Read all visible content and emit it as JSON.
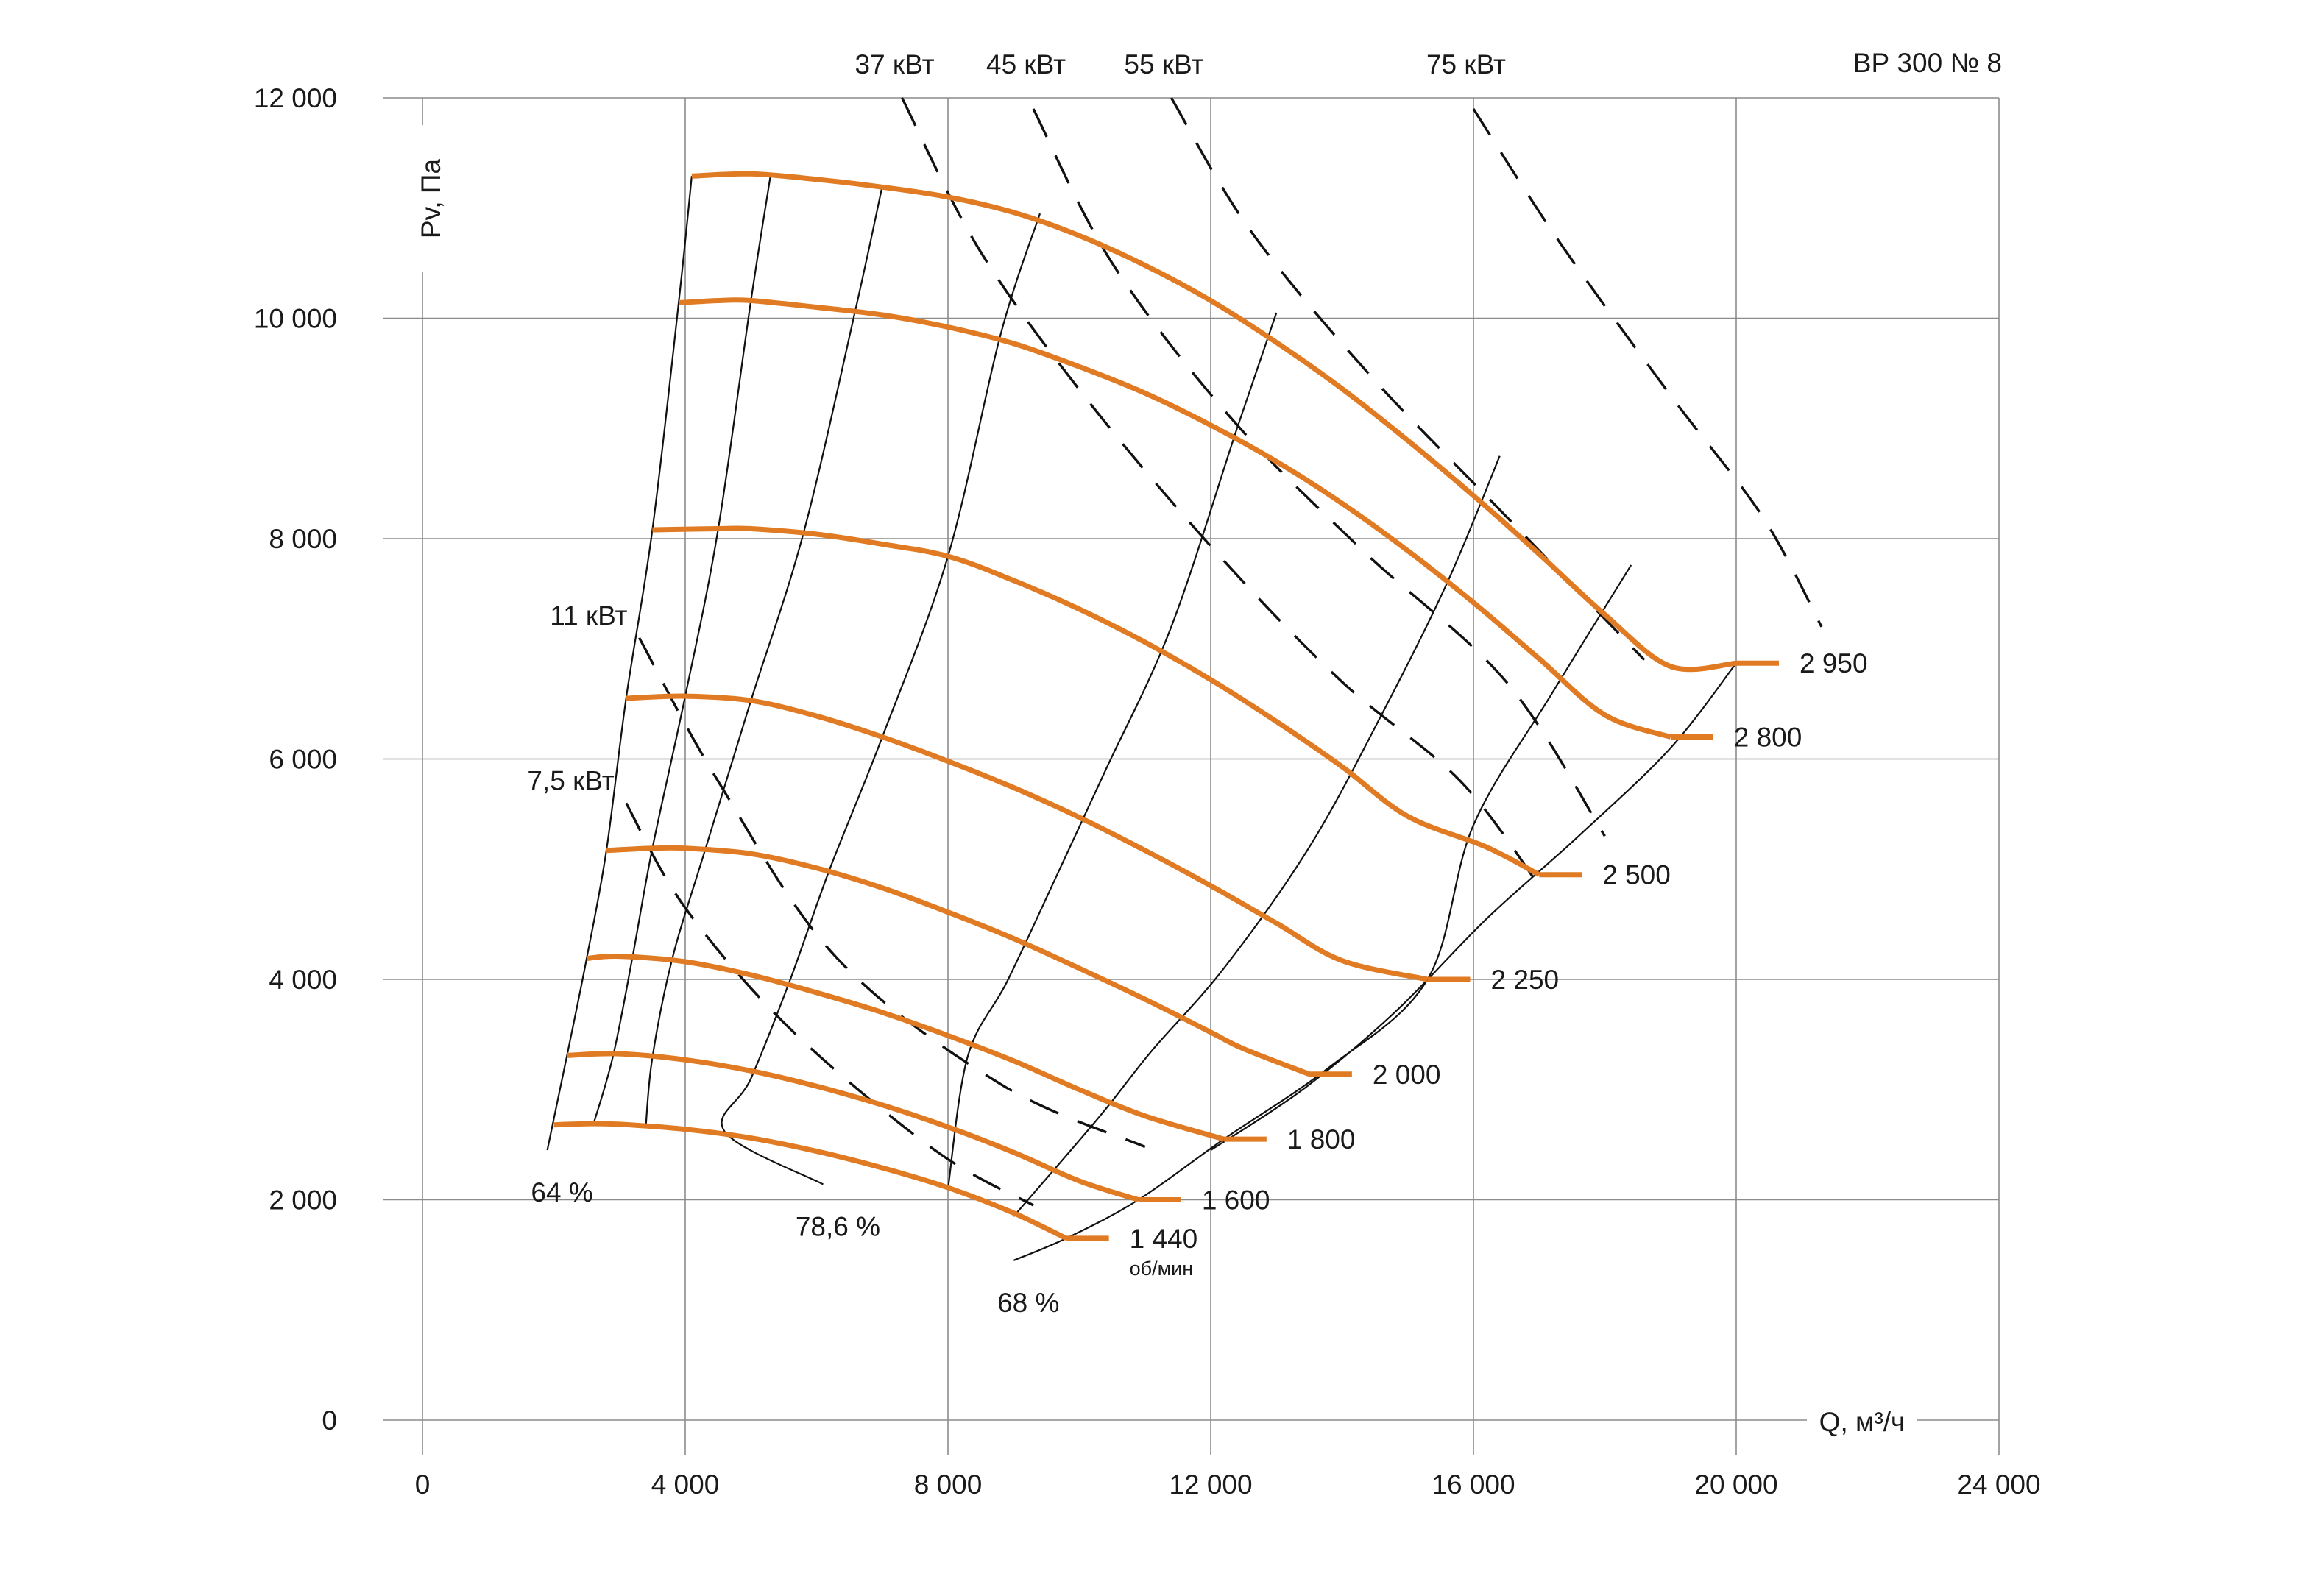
{
  "chart_data": {
    "type": "line",
    "title": "ВР 300 № 8",
    "xlabel": "Q, м³/ч",
    "ylabel": "Pv, Па",
    "xlim": [
      0,
      24000
    ],
    "ylim": [
      0,
      12000
    ],
    "x_ticks": [
      0,
      4000,
      8000,
      12000,
      16000,
      20000,
      24000
    ],
    "x_tick_labels": [
      "0",
      "4 000",
      "8 000",
      "12 000",
      "16 000",
      "20 000",
      "24 000"
    ],
    "y_ticks": [
      0,
      2000,
      4000,
      6000,
      8000,
      10000,
      12000
    ],
    "y_tick_labels": [
      "0",
      "2 000",
      "4 000",
      "6 000",
      "8 000",
      "10 000",
      "12 000"
    ],
    "grid": true,
    "colors": {
      "speed_curve": "#e07b24",
      "efficiency_line": "#111111",
      "power_line": "#111111",
      "grid": "#8c8c8c"
    },
    "speed_unit_label": "об/мин",
    "series": [
      {
        "label": "1 440",
        "points": [
          [
            2000,
            2680
          ],
          [
            2500,
            2690
          ],
          [
            3000,
            2685
          ],
          [
            4000,
            2640
          ],
          [
            5000,
            2560
          ],
          [
            6000,
            2440
          ],
          [
            7000,
            2290
          ],
          [
            8000,
            2110
          ],
          [
            9000,
            1880
          ],
          [
            9800,
            1650
          ]
        ]
      },
      {
        "label": "1 600",
        "points": [
          [
            2200,
            3310
          ],
          [
            3000,
            3325
          ],
          [
            4000,
            3270
          ],
          [
            5000,
            3170
          ],
          [
            6000,
            3030
          ],
          [
            7000,
            2860
          ],
          [
            8000,
            2660
          ],
          [
            9000,
            2430
          ],
          [
            10000,
            2170
          ],
          [
            10900,
            2000
          ]
        ]
      },
      {
        "label": "1 800",
        "points": [
          [
            2500,
            4190
          ],
          [
            3000,
            4210
          ],
          [
            4000,
            4160
          ],
          [
            5000,
            4040
          ],
          [
            6000,
            3880
          ],
          [
            7000,
            3700
          ],
          [
            8000,
            3490
          ],
          [
            9000,
            3260
          ],
          [
            10000,
            3000
          ],
          [
            11000,
            2760
          ],
          [
            12200,
            2550
          ]
        ]
      },
      {
        "label": "2 000",
        "points": [
          [
            2800,
            5170
          ],
          [
            3500,
            5190
          ],
          [
            4000,
            5190
          ],
          [
            5000,
            5140
          ],
          [
            6000,
            5010
          ],
          [
            7000,
            4830
          ],
          [
            8000,
            4610
          ],
          [
            9000,
            4370
          ],
          [
            10000,
            4100
          ],
          [
            11000,
            3820
          ],
          [
            12000,
            3520
          ],
          [
            12500,
            3370
          ],
          [
            13500,
            3140
          ]
        ]
      },
      {
        "label": "2 250",
        "points": [
          [
            3100,
            6550
          ],
          [
            4000,
            6570
          ],
          [
            5000,
            6530
          ],
          [
            6000,
            6390
          ],
          [
            7000,
            6200
          ],
          [
            8000,
            5980
          ],
          [
            9000,
            5740
          ],
          [
            10000,
            5470
          ],
          [
            11000,
            5170
          ],
          [
            12000,
            4850
          ],
          [
            13000,
            4510
          ],
          [
            14000,
            4170
          ],
          [
            15300,
            4000
          ]
        ]
      },
      {
        "label": "2 500",
        "points": [
          [
            3500,
            8080
          ],
          [
            4500,
            8090
          ],
          [
            5000,
            8090
          ],
          [
            6000,
            8040
          ],
          [
            7000,
            7950
          ],
          [
            8000,
            7840
          ],
          [
            9000,
            7620
          ],
          [
            10000,
            7360
          ],
          [
            11000,
            7060
          ],
          [
            12000,
            6720
          ],
          [
            13000,
            6340
          ],
          [
            14000,
            5930
          ],
          [
            15000,
            5480
          ],
          [
            16200,
            5200
          ],
          [
            17000,
            4950
          ]
        ]
      },
      {
        "label": "2 800",
        "points": [
          [
            3900,
            10140
          ],
          [
            4500,
            10160
          ],
          [
            5000,
            10160
          ],
          [
            6000,
            10100
          ],
          [
            7000,
            10030
          ],
          [
            8000,
            9920
          ],
          [
            9000,
            9770
          ],
          [
            10000,
            9560
          ],
          [
            11000,
            9320
          ],
          [
            12000,
            9030
          ],
          [
            13000,
            8700
          ],
          [
            14000,
            8320
          ],
          [
            15000,
            7890
          ],
          [
            16000,
            7420
          ],
          [
            17000,
            6910
          ],
          [
            18000,
            6400
          ],
          [
            19000,
            6200
          ]
        ]
      },
      {
        "label": "2 950",
        "points": [
          [
            4100,
            11290
          ],
          [
            5000,
            11310
          ],
          [
            6000,
            11260
          ],
          [
            7000,
            11190
          ],
          [
            8000,
            11100
          ],
          [
            9000,
            10960
          ],
          [
            10000,
            10750
          ],
          [
            11000,
            10480
          ],
          [
            12000,
            10160
          ],
          [
            13000,
            9780
          ],
          [
            14000,
            9360
          ],
          [
            15000,
            8890
          ],
          [
            16000,
            8390
          ],
          [
            17000,
            7860
          ],
          [
            18000,
            7310
          ],
          [
            19000,
            6840
          ],
          [
            20000,
            6870
          ]
        ]
      }
    ],
    "efficiency_lines": [
      {
        "label": "64 %",
        "points": [
          [
            4100,
            11290
          ],
          [
            3900,
            10140
          ],
          [
            3500,
            8080
          ],
          [
            3100,
            6550
          ],
          [
            2800,
            5170
          ],
          [
            2500,
            4190
          ],
          [
            2200,
            3310
          ],
          [
            1900,
            2450
          ]
        ]
      },
      {
        "points": [
          [
            5300,
            11300
          ],
          [
            5000,
            10160
          ],
          [
            4500,
            8080
          ],
          [
            4000,
            6570
          ],
          [
            3500,
            5190
          ],
          [
            3200,
            4210
          ],
          [
            2900,
            3300
          ],
          [
            2600,
            2680
          ]
        ]
      },
      {
        "points": [
          [
            7000,
            11200
          ],
          [
            6600,
            10100
          ],
          [
            5800,
            8050
          ],
          [
            5000,
            6530
          ],
          [
            4300,
            5170
          ],
          [
            3800,
            4180
          ],
          [
            3500,
            3290
          ],
          [
            3400,
            2670
          ]
        ]
      },
      {
        "label": "78,6 %",
        "points": [
          [
            9400,
            10950
          ],
          [
            8800,
            9850
          ],
          [
            8000,
            7840
          ],
          [
            7000,
            6200
          ],
          [
            6200,
            5000
          ],
          [
            5600,
            4000
          ],
          [
            5000,
            3100
          ],
          [
            4600,
            2620
          ],
          [
            6100,
            2140
          ]
        ]
      },
      {
        "points": [
          [
            13000,
            10050
          ],
          [
            12400,
            9000
          ],
          [
            11400,
            7200
          ],
          [
            10400,
            5900
          ],
          [
            9600,
            4870
          ],
          [
            8900,
            3980
          ],
          [
            8300,
            3300
          ],
          [
            8000,
            2100
          ]
        ]
      },
      {
        "points": [
          [
            16400,
            8750
          ],
          [
            15600,
            7600
          ],
          [
            14600,
            6400
          ],
          [
            13500,
            5200
          ],
          [
            12200,
            4100
          ],
          [
            11100,
            3350
          ],
          [
            10300,
            2750
          ],
          [
            9000,
            1850
          ]
        ]
      },
      {
        "label": "68 %",
        "points": [
          [
            18400,
            7760
          ],
          [
            17200,
            6600
          ],
          [
            16000,
            5400
          ],
          [
            15300,
            4000
          ],
          [
            13800,
            3200
          ],
          [
            12200,
            2550
          ],
          [
            10900,
            2000
          ],
          [
            9800,
            1650
          ],
          [
            9000,
            1450
          ]
        ]
      },
      {
        "points": [
          [
            20000,
            6870
          ],
          [
            19000,
            6100
          ],
          [
            17600,
            5300
          ],
          [
            16200,
            4550
          ],
          [
            14800,
            3700
          ],
          [
            13400,
            3000
          ],
          [
            12000,
            2450
          ]
        ]
      }
    ],
    "power_lines": [
      {
        "label": "7,5 кВт",
        "points": [
          [
            3100,
            5600
          ],
          [
            4000,
            4650
          ],
          [
            5600,
            3550
          ],
          [
            7800,
            2450
          ],
          [
            9300,
            1950
          ]
        ]
      },
      {
        "label": "11 кВт",
        "points": [
          [
            3300,
            7100
          ],
          [
            4500,
            5800
          ],
          [
            6300,
            4200
          ],
          [
            8800,
            3050
          ],
          [
            11000,
            2480
          ]
        ]
      },
      {
        "label": "37 кВт",
        "points": [
          [
            7300,
            12000
          ],
          [
            8500,
            10600
          ],
          [
            10200,
            9200
          ],
          [
            12200,
            7800
          ],
          [
            14000,
            6700
          ],
          [
            15800,
            5800
          ],
          [
            17000,
            4850
          ]
        ]
      },
      {
        "label": "45 кВт",
        "points": [
          [
            9300,
            11900
          ],
          [
            10500,
            10500
          ],
          [
            12300,
            9100
          ],
          [
            14300,
            7900
          ],
          [
            16500,
            6700
          ],
          [
            18000,
            5300
          ]
        ]
      },
      {
        "label": "55 кВт",
        "points": [
          [
            11400,
            12000
          ],
          [
            12600,
            10800
          ],
          [
            14400,
            9500
          ],
          [
            16500,
            8200
          ],
          [
            18600,
            6900
          ]
        ]
      },
      {
        "label": "75 кВт",
        "points": [
          [
            16000,
            11900
          ],
          [
            17300,
            10700
          ],
          [
            19000,
            9300
          ],
          [
            20400,
            8200
          ],
          [
            21300,
            7200
          ]
        ]
      }
    ]
  }
}
